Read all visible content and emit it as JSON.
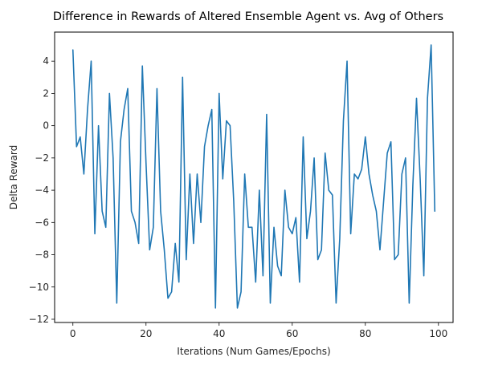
{
  "chart_data": {
    "type": "line",
    "title": "Difference in Rewards of Altered Ensemble Agent vs. Avg of Others",
    "xlabel": "Iterations (Num Games/Epochs)",
    "ylabel": "Delta Reward",
    "xlim": [
      -5,
      104
    ],
    "ylim": [
      -12.2,
      5.8
    ],
    "xticks": [
      0,
      20,
      40,
      60,
      80,
      100
    ],
    "yticks": [
      -12,
      -10,
      -8,
      -6,
      -4,
      -2,
      0,
      2,
      4
    ],
    "grid": false,
    "legend": "none",
    "series": [
      {
        "color": "#1f77b4",
        "x": [
          0,
          1,
          2,
          3,
          4,
          5,
          6,
          7,
          8,
          9,
          10,
          11,
          12,
          13,
          14,
          15,
          16,
          17,
          18,
          19,
          20,
          21,
          22,
          23,
          24,
          25,
          26,
          27,
          28,
          29,
          30,
          31,
          32,
          33,
          34,
          35,
          36,
          37,
          38,
          39,
          40,
          41,
          42,
          43,
          44,
          45,
          46,
          47,
          48,
          49,
          50,
          51,
          52,
          53,
          54,
          55,
          56,
          57,
          58,
          59,
          60,
          61,
          62,
          63,
          64,
          65,
          66,
          67,
          68,
          69,
          70,
          71,
          72,
          73,
          74,
          75,
          76,
          77,
          78,
          79,
          80,
          81,
          82,
          83,
          84,
          85,
          86,
          87,
          88,
          89,
          90,
          91,
          92,
          93,
          94,
          95,
          96,
          97,
          98,
          99
        ],
        "y": [
          4.7,
          -1.3,
          -0.7,
          -3.0,
          1.0,
          4.0,
          -6.7,
          0.0,
          -5.3,
          -6.3,
          2.0,
          -2.0,
          -11.0,
          -1.0,
          1.0,
          2.3,
          -5.3,
          -6.0,
          -7.3,
          3.7,
          -2.3,
          -7.7,
          -6.3,
          2.3,
          -5.3,
          -7.7,
          -10.7,
          -10.3,
          -7.3,
          -9.7,
          3.0,
          -8.3,
          -3.0,
          -7.3,
          -3.0,
          -6.0,
          -1.3,
          0.0,
          1.0,
          -11.3,
          2.0,
          -3.3,
          0.3,
          0.0,
          -4.7,
          -11.3,
          -10.3,
          -3.0,
          -6.3,
          -6.3,
          -9.7,
          -4.0,
          -9.3,
          0.7,
          -11.0,
          -6.3,
          -8.7,
          -9.3,
          -4.0,
          -6.3,
          -6.7,
          -5.7,
          -9.7,
          -0.7,
          -7.0,
          -5.3,
          -2.0,
          -8.3,
          -7.7,
          -1.7,
          -4.0,
          -4.3,
          -11.0,
          -7.0,
          0.3,
          4.0,
          -6.7,
          -3.0,
          -3.3,
          -2.7,
          -0.7,
          -3.0,
          -4.3,
          -5.3,
          -7.7,
          -4.7,
          -1.7,
          -1.0,
          -8.3,
          -8.0,
          -3.0,
          -2.0,
          -11.0,
          -3.7,
          1.7,
          -3.3,
          -9.3,
          1.7,
          5.0,
          -5.3
        ]
      }
    ]
  }
}
